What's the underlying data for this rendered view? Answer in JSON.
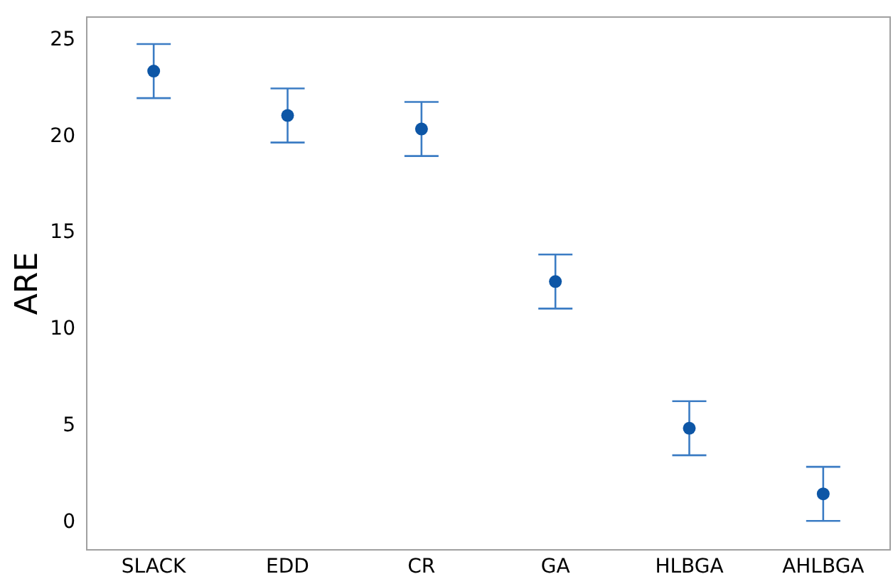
{
  "chart_data": {
    "type": "scatter",
    "ylabel": "ARE",
    "categories": [
      "SLACK",
      "EDD",
      "CR",
      "GA",
      "HLBGA",
      "AHLBGA"
    ],
    "series": [
      {
        "color": "#0d56a6",
        "values": [
          23.3,
          21.0,
          20.3,
          12.4,
          4.8,
          1.4
        ],
        "errors": [
          1.4,
          1.4,
          1.4,
          1.4,
          1.4,
          1.4
        ]
      }
    ],
    "ylim": [
      -1.5,
      26.1
    ],
    "yticks": [
      0,
      5,
      10,
      15,
      20,
      25
    ],
    "grid": false,
    "marker": "circle"
  }
}
